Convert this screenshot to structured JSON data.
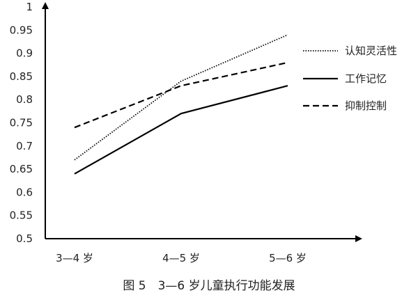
{
  "caption": "图 5　3—6 岁儿童执行功能发展",
  "chart_data": {
    "type": "line",
    "categories": [
      "3—4 岁",
      "4—5 岁",
      "5—6 岁"
    ],
    "ylim": [
      0.5,
      1
    ],
    "yticks": [
      "0.5",
      "0.55",
      "0.6",
      "0.65",
      "0.7",
      "0.75",
      "0.8",
      "0.85",
      "0.9",
      "0.95",
      "1"
    ],
    "grid": false,
    "legend_position": "right",
    "series": [
      {
        "name": "认知灵活性",
        "values": [
          0.67,
          0.84,
          0.94
        ],
        "style": "dotted",
        "color": "#000000"
      },
      {
        "name": "工作记忆",
        "values": [
          0.64,
          0.77,
          0.83
        ],
        "style": "solid",
        "color": "#000000"
      },
      {
        "name": "抑制控制",
        "values": [
          0.74,
          0.83,
          0.88
        ],
        "style": "dashed",
        "color": "#000000"
      }
    ]
  }
}
